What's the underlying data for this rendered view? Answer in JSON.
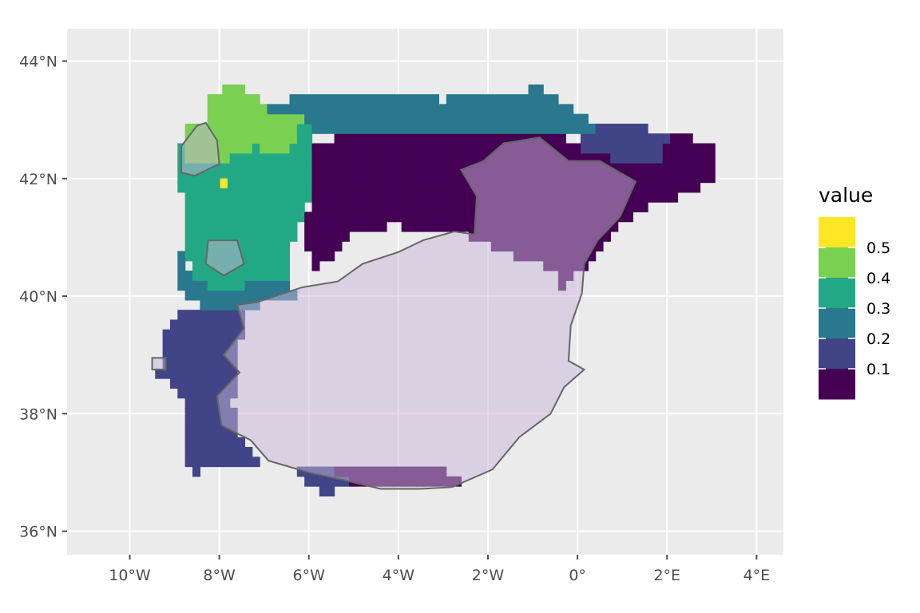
{
  "chart_data": {
    "type": "heatmap",
    "title": "",
    "xlabel": "",
    "ylabel": "",
    "xlim": [
      -11.4,
      4.6
    ],
    "ylim": [
      35.6,
      44.55
    ],
    "x_tick_values": [
      -10,
      -8,
      -6,
      -4,
      -2,
      0,
      2,
      4
    ],
    "x_tick_labels": [
      "10°W",
      "8°W",
      "6°W",
      "4°W",
      "2°W",
      "0°",
      "2°E",
      "4°E"
    ],
    "y_tick_values": [
      36,
      38,
      40,
      42,
      44
    ],
    "y_tick_labels": [
      "36°N",
      "38°N",
      "40°N",
      "42°N",
      "44°N"
    ],
    "grid": true,
    "panel_background": "#ebebeb",
    "cell_size_deg": 0.1667,
    "overlay_color": "#c7b6d8",
    "overlay_opacity": 0.5,
    "overlay_outline_color": "#666666",
    "legend": {
      "title": "value",
      "position": "right",
      "labels": [
        "0.5",
        "0.4",
        "0.3",
        "0.2",
        "0.1"
      ],
      "breaks": [
        0.5,
        0.4,
        0.3,
        0.2,
        0.1
      ],
      "bins": [
        {
          "lo": 0.5,
          "hi": 0.6,
          "color": "#fde725"
        },
        {
          "lo": 0.4,
          "hi": 0.5,
          "color": "#7ad151"
        },
        {
          "lo": 0.3,
          "hi": 0.4,
          "color": "#22a884"
        },
        {
          "lo": 0.2,
          "hi": 0.3,
          "color": "#2a788e"
        },
        {
          "lo": 0.1,
          "hi": 0.2,
          "color": "#414487"
        },
        {
          "lo": 0.0,
          "hi": 0.1,
          "color": "#440154"
        }
      ]
    },
    "regions": [
      {
        "name": "galicia-green",
        "value": 0.45,
        "lonlat": [
          [
            -8.75,
            42.9
          ],
          [
            -8.35,
            42.95
          ],
          [
            -8.2,
            43.35
          ],
          [
            -7.9,
            43.62
          ],
          [
            -7.5,
            43.58
          ],
          [
            -7.1,
            43.3
          ],
          [
            -6.85,
            43.1
          ],
          [
            -7.0,
            42.6
          ],
          [
            -7.5,
            42.4
          ],
          [
            -8.6,
            42.2
          ],
          [
            -8.85,
            42.55
          ]
        ]
      },
      {
        "name": "north-green-patch",
        "value": 0.45,
        "lonlat": [
          [
            -7.3,
            42.98
          ],
          [
            -6.65,
            43.1
          ],
          [
            -6.15,
            43.02
          ],
          [
            -6.25,
            42.55
          ],
          [
            -6.9,
            42.35
          ],
          [
            -7.2,
            42.55
          ]
        ]
      },
      {
        "name": "northwest-teal",
        "value": 0.35,
        "lonlat": [
          [
            -8.85,
            42.55
          ],
          [
            -8.6,
            42.2
          ],
          [
            -7.5,
            42.4
          ],
          [
            -7.0,
            42.6
          ],
          [
            -6.85,
            43.1
          ],
          [
            -6.15,
            43.02
          ],
          [
            -5.9,
            42.85
          ],
          [
            -5.85,
            42.3
          ],
          [
            -6.0,
            41.6
          ],
          [
            -6.35,
            40.95
          ],
          [
            -6.5,
            40.35
          ],
          [
            -7.55,
            40.15
          ],
          [
            -8.6,
            40.2
          ],
          [
            -8.8,
            41.0
          ],
          [
            -8.85,
            41.8
          ]
        ]
      },
      {
        "name": "portugal-center-blue",
        "value": 0.25,
        "lonlat": [
          [
            -8.85,
            40.75
          ],
          [
            -8.55,
            40.2
          ],
          [
            -7.55,
            40.15
          ],
          [
            -6.5,
            40.35
          ],
          [
            -6.25,
            39.98
          ],
          [
            -7.5,
            39.8
          ],
          [
            -8.3,
            39.8
          ],
          [
            -8.85,
            40.1
          ]
        ]
      },
      {
        "name": "cantabrian-blue",
        "value": 0.25,
        "lonlat": [
          [
            -6.95,
            43.22
          ],
          [
            -6.0,
            43.45
          ],
          [
            -4.8,
            43.45
          ],
          [
            -3.0,
            43.35
          ],
          [
            -1.8,
            43.4
          ],
          [
            -0.9,
            43.55
          ],
          [
            0.25,
            43.0
          ],
          [
            0.4,
            42.75
          ],
          [
            -0.9,
            42.75
          ],
          [
            -2.4,
            42.75
          ],
          [
            -4.0,
            42.75
          ],
          [
            -6.05,
            42.82
          ]
        ]
      },
      {
        "name": "portugal-south-indigo",
        "value": 0.15,
        "lonlat": [
          [
            -9.5,
            38.75
          ],
          [
            -9.25,
            38.85
          ],
          [
            -9.2,
            39.35
          ],
          [
            -8.8,
            39.75
          ],
          [
            -8.3,
            39.9
          ],
          [
            -7.3,
            40.0
          ],
          [
            -7.45,
            39.5
          ],
          [
            -7.6,
            38.9
          ],
          [
            -7.7,
            38.2
          ],
          [
            -7.55,
            37.6
          ],
          [
            -7.1,
            37.15
          ],
          [
            -7.75,
            37.1
          ],
          [
            -8.5,
            37.0
          ],
          [
            -8.85,
            37.2
          ],
          [
            -8.75,
            37.6
          ],
          [
            -8.85,
            38.35
          ]
        ]
      },
      {
        "name": "cadiz-indigo",
        "value": 0.15,
        "lonlat": [
          [
            -6.45,
            37.15
          ],
          [
            -6.1,
            36.85
          ],
          [
            -5.6,
            36.65
          ],
          [
            -5.05,
            36.85
          ],
          [
            -5.5,
            37.05
          ],
          [
            -6.0,
            37.05
          ]
        ]
      },
      {
        "name": "ebro-indigo",
        "value": 0.15,
        "lonlat": [
          [
            0.0,
            43.0
          ],
          [
            1.4,
            42.95
          ],
          [
            2.0,
            42.7
          ],
          [
            1.9,
            42.35
          ],
          [
            0.8,
            42.35
          ],
          [
            0.0,
            42.55
          ]
        ]
      },
      {
        "name": "north-purple",
        "value": 0.05,
        "lonlat": [
          [
            -6.0,
            42.65
          ],
          [
            -4.4,
            42.75
          ],
          [
            -2.9,
            42.8
          ],
          [
            -0.5,
            42.75
          ],
          [
            0.35,
            42.55
          ],
          [
            1.6,
            42.68
          ],
          [
            2.3,
            42.8
          ],
          [
            3.1,
            42.5
          ],
          [
            3.15,
            42.0
          ],
          [
            2.6,
            41.8
          ],
          [
            1.5,
            41.5
          ],
          [
            0.8,
            41.15
          ],
          [
            0.2,
            40.55
          ],
          [
            -0.35,
            40.1
          ],
          [
            -0.55,
            40.45
          ],
          [
            -1.0,
            40.6
          ],
          [
            -1.8,
            40.75
          ],
          [
            -2.3,
            41.0
          ],
          [
            -3.0,
            41.1
          ],
          [
            -4.2,
            41.2
          ],
          [
            -5.2,
            41.0
          ],
          [
            -5.5,
            40.65
          ],
          [
            -5.9,
            40.4
          ],
          [
            -6.1,
            41.1
          ],
          [
            -5.95,
            41.8
          ]
        ]
      },
      {
        "name": "andalusia-south-strip",
        "value": 0.05,
        "lonlat": [
          [
            -6.2,
            37.0
          ],
          [
            -5.3,
            36.85
          ],
          [
            -4.2,
            36.7
          ],
          [
            -3.2,
            36.75
          ],
          [
            -2.5,
            36.82
          ],
          [
            -3.0,
            37.05
          ],
          [
            -4.5,
            37.1
          ],
          [
            -5.7,
            37.1
          ]
        ]
      }
    ],
    "overlays": [
      {
        "name": "central-meseta",
        "lonlat": [
          [
            -7.15,
            39.9
          ],
          [
            -6.15,
            40.15
          ],
          [
            -5.35,
            40.25
          ],
          [
            -4.8,
            40.55
          ],
          [
            -4.0,
            40.75
          ],
          [
            -3.45,
            40.95
          ],
          [
            -2.75,
            41.1
          ],
          [
            -2.3,
            41.05
          ],
          [
            -2.25,
            41.7
          ],
          [
            -2.6,
            42.15
          ],
          [
            -2.1,
            42.3
          ],
          [
            -1.65,
            42.6
          ],
          [
            -0.85,
            42.7
          ],
          [
            -0.2,
            42.3
          ],
          [
            0.5,
            42.3
          ],
          [
            1.3,
            41.95
          ],
          [
            0.95,
            41.35
          ],
          [
            0.45,
            40.95
          ],
          [
            0.15,
            40.55
          ],
          [
            0.1,
            40.05
          ],
          [
            -0.15,
            39.5
          ],
          [
            -0.2,
            38.9
          ],
          [
            0.15,
            38.75
          ],
          [
            -0.3,
            38.45
          ],
          [
            -0.6,
            38.0
          ],
          [
            -1.3,
            37.6
          ],
          [
            -1.9,
            37.05
          ],
          [
            -2.8,
            36.75
          ],
          [
            -3.5,
            36.72
          ],
          [
            -4.4,
            36.72
          ],
          [
            -5.1,
            36.85
          ],
          [
            -6.0,
            37.0
          ],
          [
            -6.9,
            37.2
          ],
          [
            -7.3,
            37.55
          ],
          [
            -7.95,
            37.8
          ],
          [
            -8.05,
            38.3
          ],
          [
            -7.55,
            38.7
          ],
          [
            -7.9,
            39.0
          ],
          [
            -7.45,
            39.45
          ],
          [
            -7.6,
            39.85
          ]
        ]
      },
      {
        "name": "galicia-overlay",
        "lonlat": [
          [
            -8.85,
            42.55
          ],
          [
            -8.5,
            42.9
          ],
          [
            -8.3,
            42.95
          ],
          [
            -8.05,
            42.65
          ],
          [
            -8.0,
            42.25
          ],
          [
            -8.55,
            42.05
          ],
          [
            -8.85,
            42.1
          ]
        ]
      },
      {
        "name": "portugal-overlay",
        "lonlat": [
          [
            -8.25,
            40.95
          ],
          [
            -7.6,
            40.95
          ],
          [
            -7.45,
            40.55
          ],
          [
            -7.9,
            40.35
          ],
          [
            -8.3,
            40.55
          ]
        ]
      },
      {
        "name": "cape-overlay",
        "lonlat": [
          [
            -9.5,
            38.95
          ],
          [
            -9.2,
            38.95
          ],
          [
            -9.2,
            38.75
          ],
          [
            -9.5,
            38.75
          ]
        ]
      }
    ],
    "annotations": [
      {
        "name": "bright-dot",
        "value": 0.55,
        "lon": -7.9,
        "lat": 41.92
      }
    ]
  }
}
